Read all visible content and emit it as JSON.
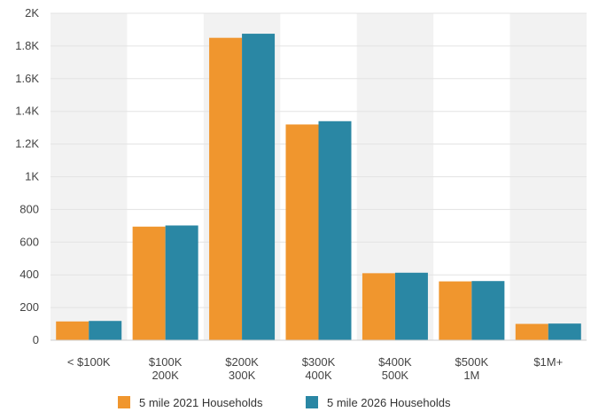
{
  "chart_data": {
    "type": "bar",
    "categories": [
      [
        "< $100K"
      ],
      [
        "$100K",
        "200K"
      ],
      [
        "$200K",
        "300K"
      ],
      [
        "$300K",
        "400K"
      ],
      [
        "$400K",
        "500K"
      ],
      [
        "$500K",
        "1M"
      ],
      [
        "$1M+"
      ]
    ],
    "series": [
      {
        "name": "5 mile 2021 Households",
        "color": "#F0962E",
        "values": [
          115,
          695,
          1850,
          1320,
          410,
          360,
          100
        ]
      },
      {
        "name": "5 mile 2026 Households",
        "color": "#2A87A4",
        "values": [
          118,
          702,
          1875,
          1340,
          413,
          362,
          102
        ]
      }
    ],
    "y_ticks": [
      {
        "value": 0,
        "label": "0"
      },
      {
        "value": 200,
        "label": "200"
      },
      {
        "value": 400,
        "label": "400"
      },
      {
        "value": 600,
        "label": "600"
      },
      {
        "value": 800,
        "label": "800"
      },
      {
        "value": 1000,
        "label": "1K"
      },
      {
        "value": 1200,
        "label": "1.2K"
      },
      {
        "value": 1400,
        "label": "1.4K"
      },
      {
        "value": 1600,
        "label": "1.6K"
      },
      {
        "value": 1800,
        "label": "1.8K"
      },
      {
        "value": 2000,
        "label": "2K"
      }
    ],
    "ylim": [
      0,
      2000
    ],
    "title": "",
    "xlabel": "",
    "ylabel": "",
    "grid": true,
    "alternating_band_color": "#F2F2F2",
    "legend_position": "bottom"
  }
}
